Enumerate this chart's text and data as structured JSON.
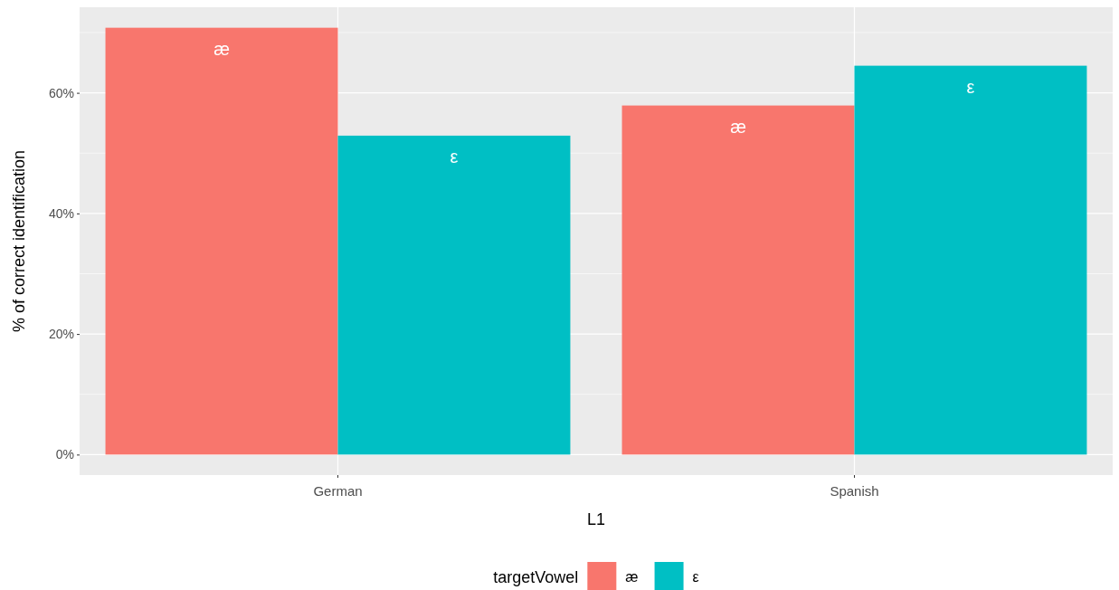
{
  "chart_data": {
    "type": "bar",
    "xlabel": "L1",
    "ylabel": "% of correct identification",
    "legend_title": "targetVowel",
    "legend": "bottom",
    "grid": true,
    "categories": [
      "German",
      "Spanish"
    ],
    "series": [
      {
        "name": "æ",
        "color": "#f8766d",
        "values": [
          70.8,
          57.9
        ]
      },
      {
        "name": "ε",
        "color": "#00bfc4",
        "values": [
          52.9,
          64.5
        ]
      }
    ],
    "ylim": [
      -3.4,
      74.2
    ],
    "yticks": [
      {
        "value": 0,
        "label": "0%"
      },
      {
        "value": 10,
        "label": null
      },
      {
        "value": 20,
        "label": "20%"
      },
      {
        "value": 30,
        "label": null
      },
      {
        "value": 40,
        "label": "40%"
      },
      {
        "value": 50,
        "label": null
      },
      {
        "value": 60,
        "label": "60%"
      },
      {
        "value": 70,
        "label": null
      }
    ]
  }
}
